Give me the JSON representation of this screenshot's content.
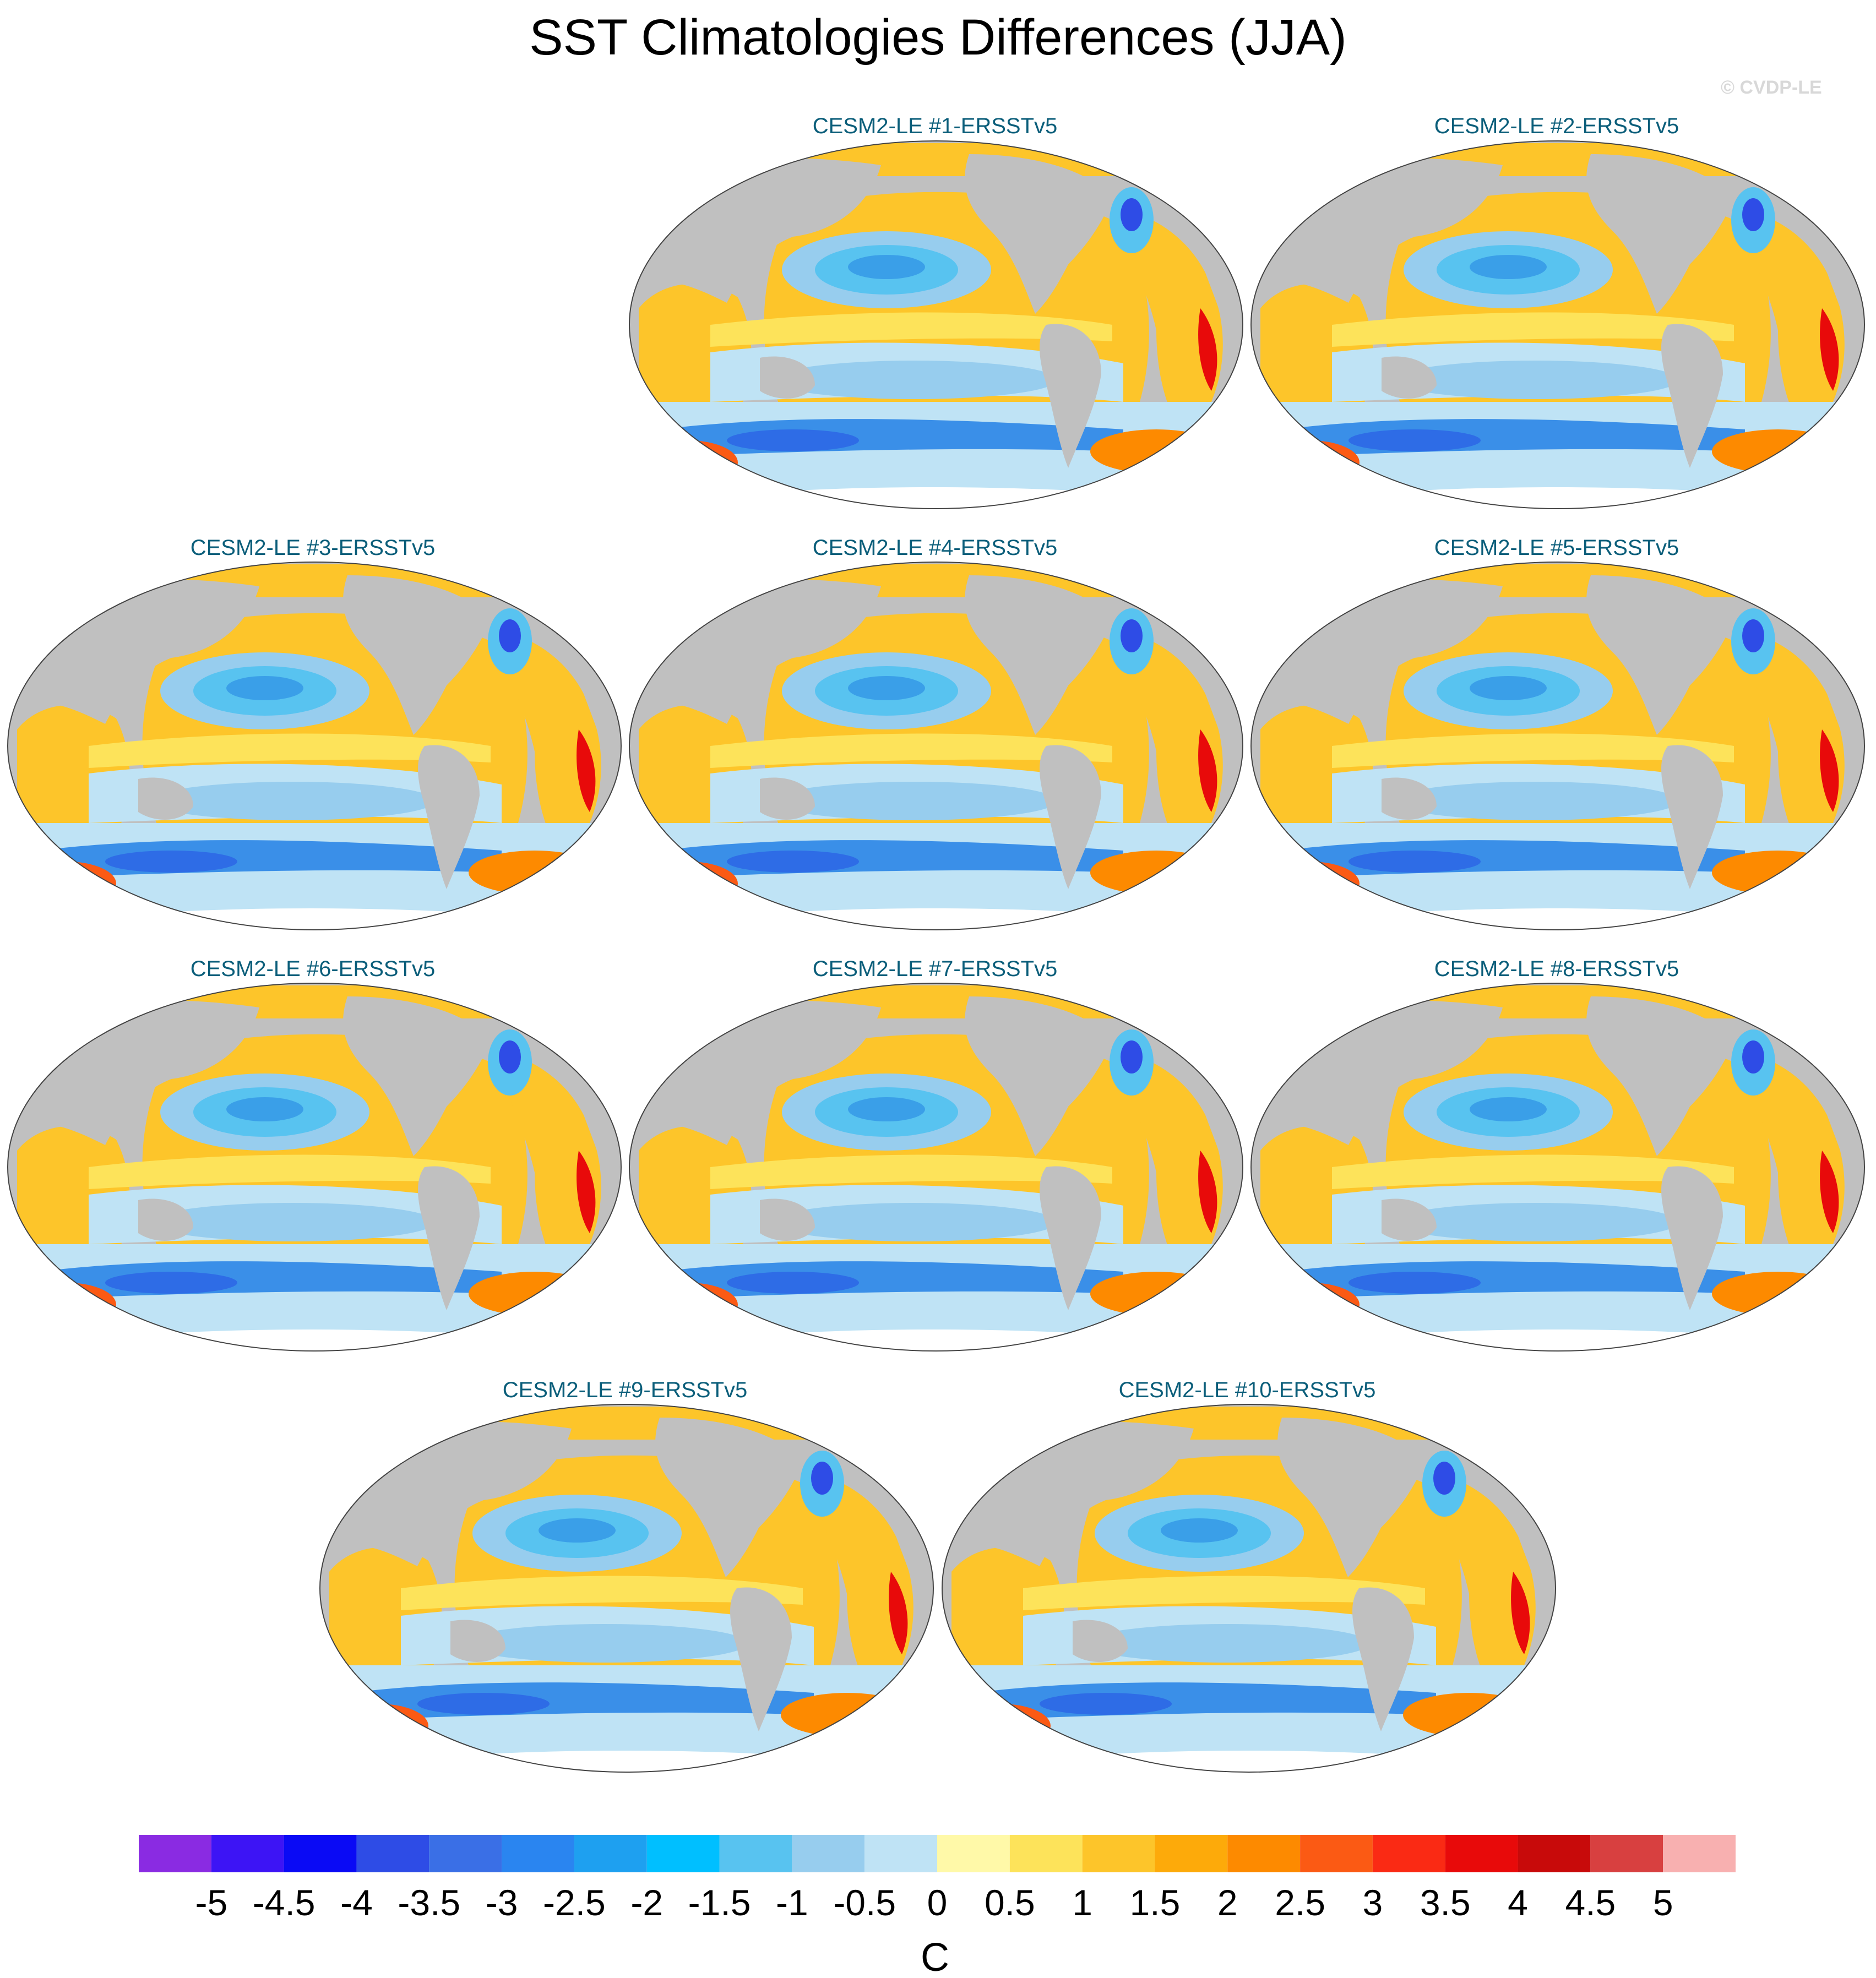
{
  "title": "SST Climatologies Differences (JJA)",
  "watermark": "© CVDP-LE",
  "panels": [
    {
      "title": "CESM2-LE #1-ERSSTv5"
    },
    {
      "title": "CESM2-LE #2-ERSSTv5"
    },
    {
      "title": "CESM2-LE #3-ERSSTv5"
    },
    {
      "title": "CESM2-LE #4-ERSSTv5"
    },
    {
      "title": "CESM2-LE #5-ERSSTv5"
    },
    {
      "title": "CESM2-LE #6-ERSSTv5"
    },
    {
      "title": "CESM2-LE #7-ERSSTv5"
    },
    {
      "title": "CESM2-LE #8-ERSSTv5"
    },
    {
      "title": "CESM2-LE #9-ERSSTv5"
    },
    {
      "title": "CESM2-LE #10-ERSSTv5"
    }
  ],
  "colorbar": {
    "unit": "C",
    "ticks": [
      "-5",
      "-4.5",
      "-4",
      "-3.5",
      "-3",
      "-2.5",
      "-2",
      "-1.5",
      "-1",
      "-0.5",
      "0",
      "0.5",
      "1",
      "1.5",
      "2",
      "2.5",
      "3",
      "3.5",
      "4",
      "4.5",
      "5"
    ],
    "colors": [
      "#8a2be2",
      "#3d14f5",
      "#0a0af5",
      "#2e4ce6",
      "#3a6fe6",
      "#2a85f0",
      "#1ea0f0",
      "#00bfff",
      "#58c3f0",
      "#97cdee",
      "#bfe3f5",
      "#fff9a8",
      "#fde35a",
      "#fdc52a",
      "#fdaa0a",
      "#fd8a00",
      "#fb5a14",
      "#fa2a14",
      "#e80a0a",
      "#c80a0a",
      "#d84040",
      "#f8b0b0"
    ]
  }
}
